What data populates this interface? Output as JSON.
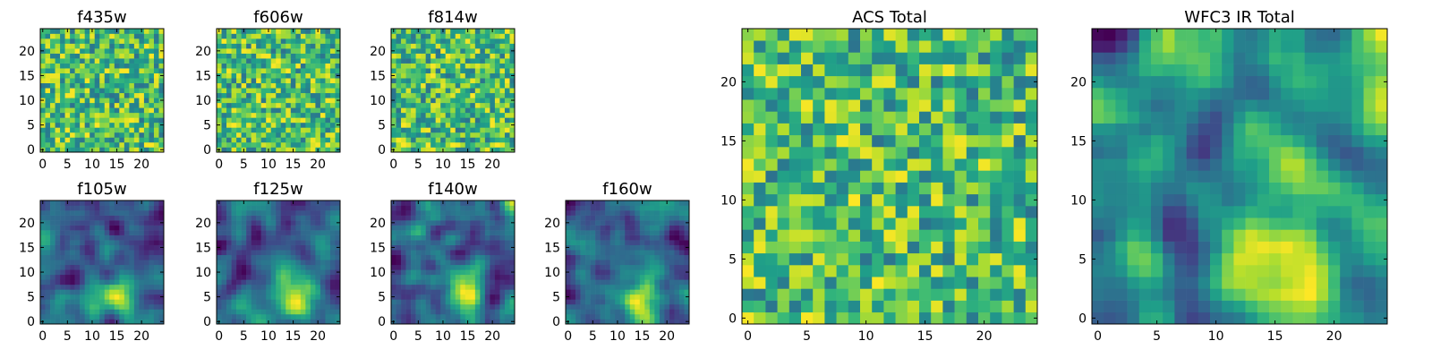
{
  "figure": {
    "colormap": "viridis",
    "background": "#ffffff"
  },
  "chart_data": [
    {
      "type": "heatmap",
      "title": "f435w",
      "grid_size": 25,
      "xticks": [
        0,
        5,
        10,
        15,
        20
      ],
      "yticks": [
        0,
        5,
        10,
        15,
        20
      ],
      "pattern": "noise",
      "xlim": [
        -0.5,
        24.5
      ],
      "ylim": [
        -0.5,
        24.5
      ]
    },
    {
      "type": "heatmap",
      "title": "f606w",
      "grid_size": 25,
      "xticks": [
        0,
        5,
        10,
        15,
        20
      ],
      "yticks": [
        0,
        5,
        10,
        15,
        20
      ],
      "pattern": "noise",
      "xlim": [
        -0.5,
        24.5
      ],
      "ylim": [
        -0.5,
        24.5
      ]
    },
    {
      "type": "heatmap",
      "title": "f814w",
      "grid_size": 25,
      "xticks": [
        0,
        5,
        10,
        15,
        20
      ],
      "yticks": [
        0,
        5,
        10,
        15,
        20
      ],
      "pattern": "noise",
      "xlim": [
        -0.5,
        24.5
      ],
      "ylim": [
        -0.5,
        24.5
      ]
    },
    {
      "type": "heatmap",
      "title": "f105w",
      "grid_size": 25,
      "xticks": [
        0,
        5,
        10,
        15,
        20
      ],
      "yticks": [
        0,
        5,
        10,
        15,
        20
      ],
      "pattern": "smooth",
      "xlim": [
        -0.5,
        24.5
      ],
      "ylim": [
        -0.5,
        24.5
      ]
    },
    {
      "type": "heatmap",
      "title": "f125w",
      "grid_size": 25,
      "xticks": [
        0,
        5,
        10,
        15,
        20
      ],
      "yticks": [
        0,
        5,
        10,
        15,
        20
      ],
      "pattern": "smooth",
      "xlim": [
        -0.5,
        24.5
      ],
      "ylim": [
        -0.5,
        24.5
      ]
    },
    {
      "type": "heatmap",
      "title": "f140w",
      "grid_size": 25,
      "xticks": [
        0,
        5,
        10,
        15,
        20
      ],
      "yticks": [
        0,
        5,
        10,
        15,
        20
      ],
      "pattern": "smooth",
      "xlim": [
        -0.5,
        24.5
      ],
      "ylim": [
        -0.5,
        24.5
      ]
    },
    {
      "type": "heatmap",
      "title": "f160w",
      "grid_size": 25,
      "xticks": [
        0,
        5,
        10,
        15,
        20
      ],
      "yticks": [
        0,
        5,
        10,
        15,
        20
      ],
      "pattern": "smooth",
      "xlim": [
        -0.5,
        24.5
      ],
      "ylim": [
        -0.5,
        24.5
      ]
    },
    {
      "type": "heatmap",
      "title": "ACS Total",
      "grid_size": 25,
      "xticks": [
        0,
        5,
        10,
        15,
        20
      ],
      "yticks": [
        0,
        5,
        10,
        15,
        20
      ],
      "pattern": "noise",
      "xlim": [
        -0.5,
        24.5
      ],
      "ylim": [
        -0.5,
        24.5
      ]
    },
    {
      "type": "heatmap",
      "title": "WFC3 IR Total",
      "grid_size": 25,
      "xticks": [
        0,
        5,
        10,
        15,
        20
      ],
      "yticks": [
        0,
        5,
        10,
        15,
        20
      ],
      "pattern": "smooth",
      "xlim": [
        -0.5,
        24.5
      ],
      "ylim": [
        -0.5,
        24.5
      ]
    }
  ]
}
